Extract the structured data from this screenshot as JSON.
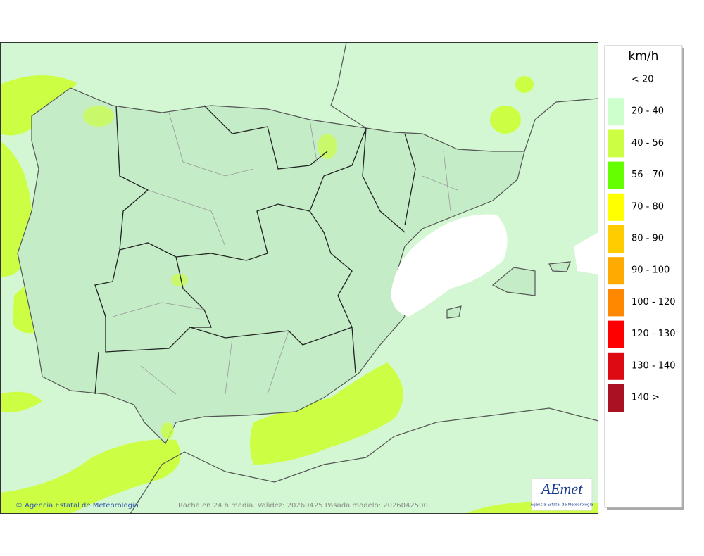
{
  "legend": {
    "unit": "km/h",
    "items": [
      {
        "label": "< 20",
        "color": null
      },
      {
        "label": "20 - 40",
        "color": "#ccffcc"
      },
      {
        "label": "40 - 56",
        "color": "#ccff44"
      },
      {
        "label": "56 - 70",
        "color": "#66ff00"
      },
      {
        "label": "70 - 80",
        "color": "#ffff00"
      },
      {
        "label": "80 - 90",
        "color": "#ffcc00"
      },
      {
        "label": "90 - 100",
        "color": "#ffaa00"
      },
      {
        "label": "100 - 120",
        "color": "#ff8800"
      },
      {
        "label": "120 - 130",
        "color": "#ff0000"
      },
      {
        "label": "130 - 140",
        "color": "#dd0a14"
      },
      {
        "label": "140 >",
        "color": "#aa1122"
      }
    ]
  },
  "map": {
    "credit": "© Agencia Estatal de Meteorología",
    "caption": "Racha en 24 h media. Validez: 20260425 Pasada modelo: 2026042500"
  },
  "logo": {
    "name": "AEmet",
    "subtitle": "Agencia Estatal de Meteorología"
  }
}
